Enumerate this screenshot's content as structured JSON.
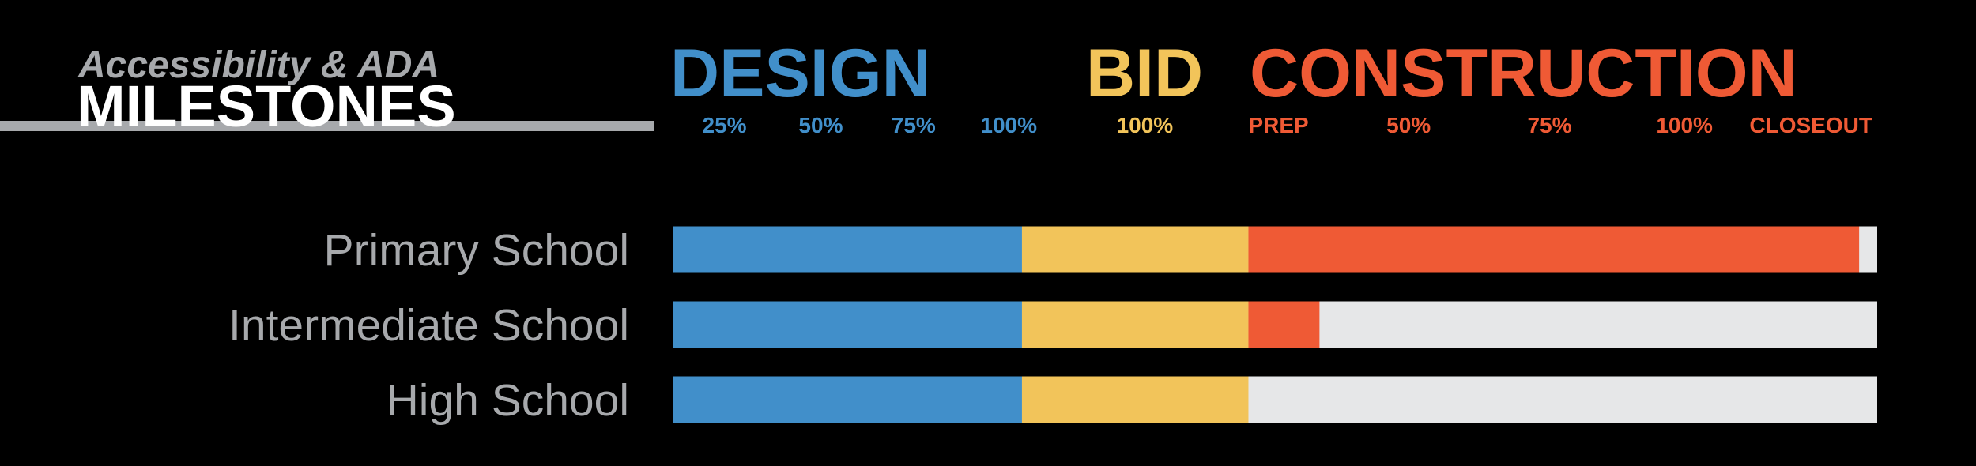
{
  "chart_data": {
    "type": "stacked-bar-horizontal",
    "subtitle": "Accessibility & ADA",
    "title": "MILESTONES",
    "categories": [
      "Primary School",
      "Intermediate School",
      "High School"
    ],
    "xlim": [
      0,
      100
    ],
    "track_color": "#e6e7e8",
    "series": [
      {
        "name": "DESIGN",
        "color": "#418fca",
        "values": [
          29,
          29,
          29
        ],
        "milestones": [
          {
            "value": 4.3,
            "label": "25%"
          },
          {
            "value": 12.3,
            "label": "50%"
          },
          {
            "value": 20,
            "label": "75%"
          },
          {
            "value": 27.9,
            "label": "100%"
          }
        ]
      },
      {
        "name": "BID",
        "color": "#f2c45a",
        "values": [
          18.8,
          18.8,
          18.8
        ],
        "milestones": [
          {
            "value": 39.2,
            "label": "100%"
          }
        ]
      },
      {
        "name": "CONSTRUCTION",
        "color": "#ef5a35",
        "values": [
          50.7,
          5.9,
          0
        ],
        "milestones": [
          {
            "value": 50.3,
            "label": "PREP"
          },
          {
            "value": 61.1,
            "label": "50%"
          },
          {
            "value": 72.8,
            "label": "75%"
          },
          {
            "value": 84,
            "label": "100%"
          },
          {
            "value": 94.5,
            "label": "CLOSEOUT"
          }
        ]
      }
    ]
  }
}
